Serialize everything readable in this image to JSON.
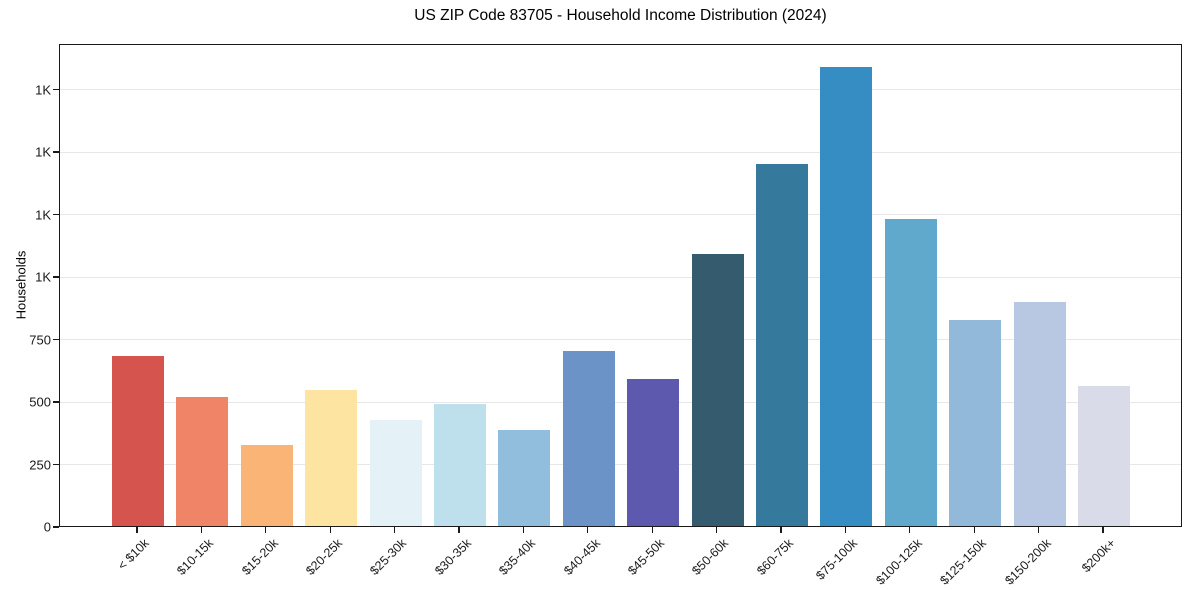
{
  "chart_data": {
    "type": "bar",
    "title": "US ZIP Code 83705 - Household Income Distribution (2024)",
    "xlabel": "",
    "ylabel": "Households",
    "categories": [
      "< $10k",
      "$10-15k",
      "$15-20k",
      "$20-25k",
      "$25-30k",
      "$30-35k",
      "$35-40k",
      "$40-45k",
      "$45-50k",
      "$50-60k",
      "$60-75k",
      "$75-100k",
      "$100-125k",
      "$125-150k",
      "$150-200k",
      "$200k+"
    ],
    "values": [
      680,
      515,
      325,
      545,
      425,
      490,
      385,
      700,
      590,
      1090,
      1450,
      1835,
      1230,
      825,
      895,
      560
    ],
    "bar_colors": [
      "#d6544e",
      "#f08466",
      "#f9b476",
      "#fde4a1",
      "#e4f2f8",
      "#bee0ec",
      "#91bedd",
      "#6b93c7",
      "#5c59ae",
      "#355c6e",
      "#35799c",
      "#368dc3",
      "#60a8cc",
      "#93b9da",
      "#b9c8e2",
      "#d9dbe9"
    ],
    "ylim": [
      0,
      1932
    ],
    "yticks": [
      {
        "value": 0,
        "label": "0"
      },
      {
        "value": 250,
        "label": "250"
      },
      {
        "value": 500,
        "label": "500"
      },
      {
        "value": 750,
        "label": "750"
      },
      {
        "value": 1000,
        "label": "1K"
      },
      {
        "value": 1250,
        "label": "1K"
      },
      {
        "value": 1500,
        "label": "1K"
      },
      {
        "value": 1750,
        "label": "1K"
      }
    ],
    "grid": "horizontal",
    "legend": "none",
    "gridline_color": "#e7e7e7",
    "axis_color": "#1a1a1a",
    "background_color": "#ffffff"
  }
}
